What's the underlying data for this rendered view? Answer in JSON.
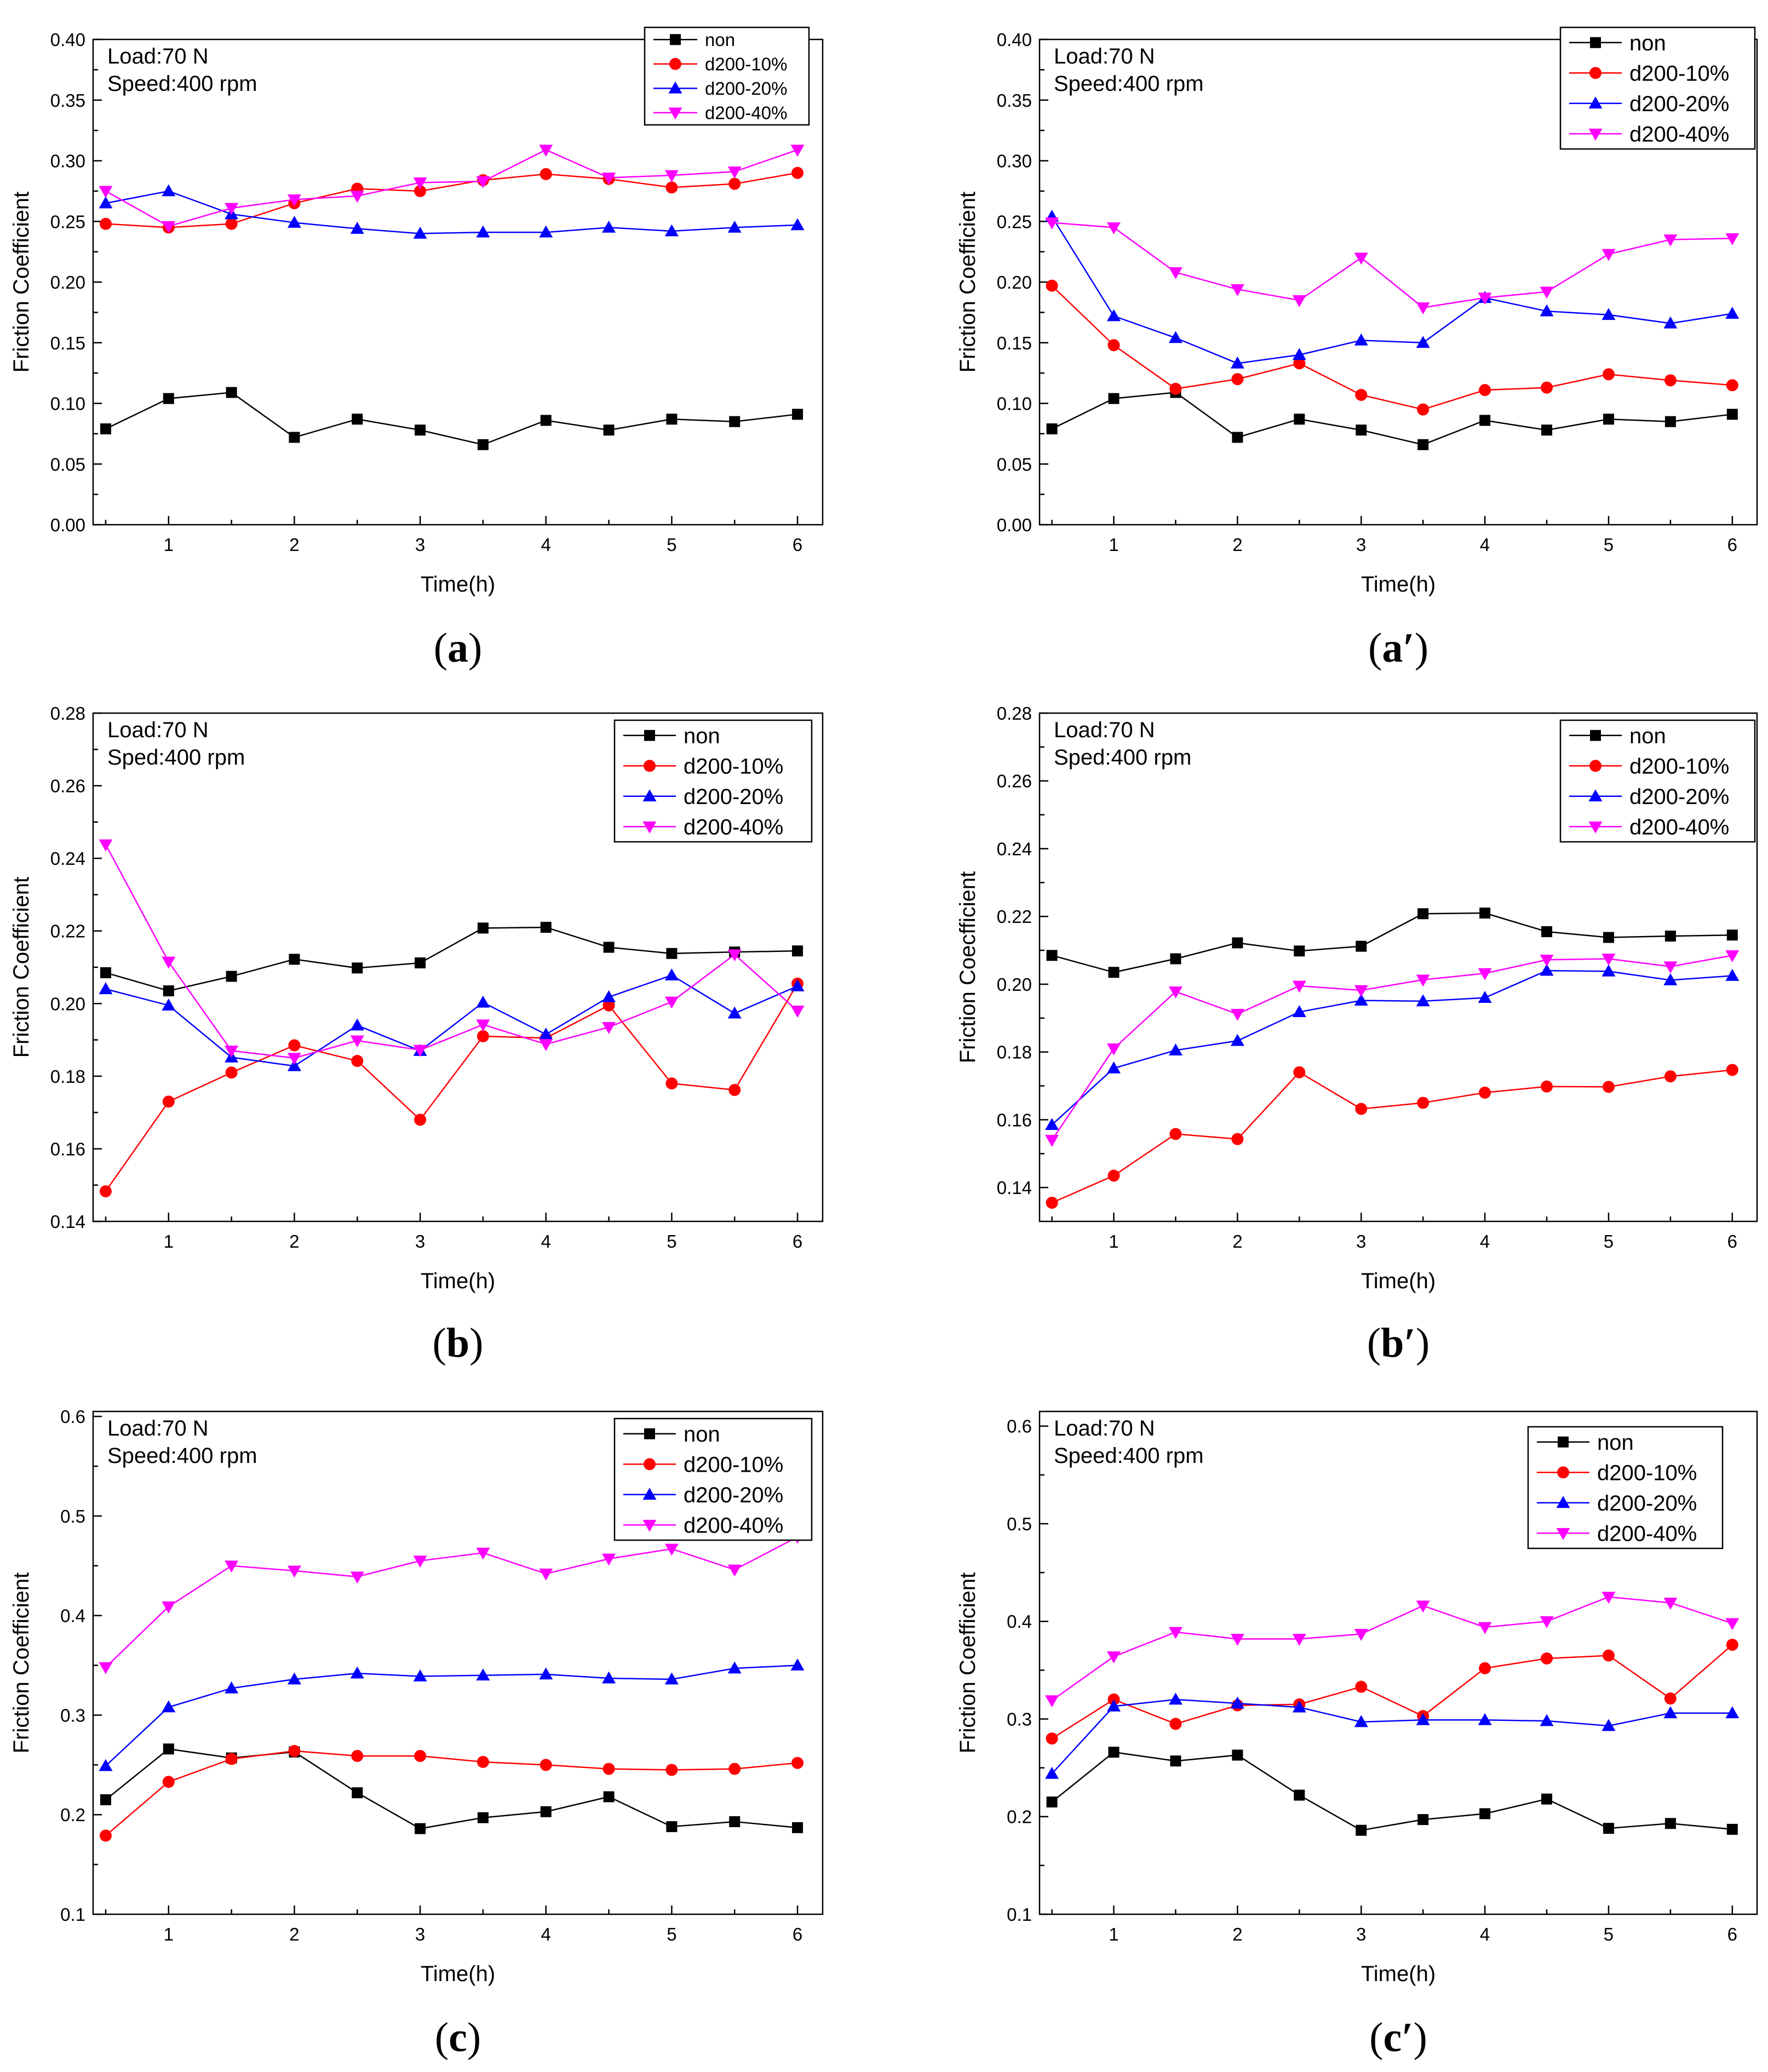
{
  "series_styles": [
    {
      "name": "non",
      "color": "#000000",
      "marker": "square"
    },
    {
      "name": "d200-10%",
      "color": "#ff0000",
      "marker": "circle"
    },
    {
      "name": "d200-20%",
      "color": "#0000ff",
      "marker": "triangle-up"
    },
    {
      "name": "d200-40%",
      "color": "#ff00ff",
      "marker": "triangle-down"
    }
  ],
  "chart_data": [
    {
      "id": "a",
      "type": "line",
      "caption_open": "(",
      "caption_label": "a",
      "caption_close": ")",
      "annotation_lines": [
        "Load:70 N",
        "Speed:400 rpm"
      ],
      "xlabel": "Time(h)",
      "ylabel": "Friction Coefficient",
      "xlim": [
        0.4,
        6.2
      ],
      "ylim": [
        0.0,
        0.4
      ],
      "xticks": [
        1,
        2,
        3,
        4,
        5,
        6
      ],
      "xtick_labels": [
        "1",
        "2",
        "3",
        "4",
        "5",
        "6"
      ],
      "yticks": [
        0.0,
        0.05,
        0.1,
        0.15,
        0.2,
        0.25,
        0.3,
        0.35,
        0.4
      ],
      "ytick_labels": [
        "0.00",
        "0.05",
        "0.10",
        "0.15",
        "0.20",
        "0.25",
        "0.30",
        "0.35",
        "0.40"
      ],
      "legend_position": "top-right",
      "x": [
        0.5,
        1,
        1.5,
        2,
        2.5,
        3,
        3.5,
        4,
        4.5,
        5,
        5.5,
        6
      ],
      "series": [
        {
          "name": "non",
          "values": [
            0.079,
            0.104,
            0.109,
            0.072,
            0.087,
            0.078,
            0.066,
            0.086,
            0.078,
            0.087,
            0.085,
            0.091
          ]
        },
        {
          "name": "d200-10%",
          "values": [
            0.248,
            0.245,
            0.248,
            0.265,
            0.277,
            0.275,
            0.284,
            0.289,
            0.285,
            0.278,
            0.281,
            0.29
          ]
        },
        {
          "name": "d200-20%",
          "values": [
            0.265,
            0.275,
            0.256,
            0.249,
            0.244,
            0.24,
            0.241,
            0.241,
            0.245,
            0.242,
            0.245,
            0.247
          ]
        },
        {
          "name": "d200-40%",
          "values": [
            0.275,
            0.246,
            0.261,
            0.268,
            0.271,
            0.282,
            0.283,
            0.309,
            0.286,
            0.288,
            0.291,
            0.309
          ]
        }
      ]
    },
    {
      "id": "a-prime",
      "type": "line",
      "caption_open": "(",
      "caption_label": "a′",
      "caption_close": ")",
      "annotation_lines": [
        "Load:70 N",
        "Speed:400 rpm"
      ],
      "xlabel": "Time(h)",
      "ylabel": "Friction Coefficient",
      "xlim": [
        0.4,
        6.2
      ],
      "ylim": [
        0.0,
        0.4
      ],
      "xticks": [
        1,
        2,
        3,
        4,
        5,
        6
      ],
      "xtick_labels": [
        "1",
        "2",
        "3",
        "4",
        "5",
        "6"
      ],
      "yticks": [
        0.0,
        0.05,
        0.1,
        0.15,
        0.2,
        0.25,
        0.3,
        0.35,
        0.4
      ],
      "ytick_labels": [
        "0.00",
        "0.05",
        "0.10",
        "0.15",
        "0.20",
        "0.25",
        "0.30",
        "0.35",
        "0.40"
      ],
      "legend_position": "top-right",
      "x": [
        0.5,
        1,
        1.5,
        2,
        2.5,
        3,
        3.5,
        4,
        4.5,
        5,
        5.5,
        6
      ],
      "series": [
        {
          "name": "non",
          "values": [
            0.079,
            0.104,
            0.109,
            0.072,
            0.087,
            0.078,
            0.066,
            0.086,
            0.078,
            0.087,
            0.085,
            0.091
          ]
        },
        {
          "name": "d200-10%",
          "values": [
            0.197,
            0.148,
            0.112,
            0.12,
            0.133,
            0.107,
            0.095,
            0.111,
            0.113,
            0.124,
            0.119,
            0.115
          ]
        },
        {
          "name": "d200-20%",
          "values": [
            0.254,
            0.172,
            0.154,
            0.133,
            0.14,
            0.152,
            0.15,
            0.187,
            0.176,
            0.173,
            0.166,
            0.174
          ]
        },
        {
          "name": "d200-40%",
          "values": [
            0.249,
            0.245,
            0.208,
            0.194,
            0.185,
            0.22,
            0.179,
            0.187,
            0.192,
            0.223,
            0.235,
            0.236
          ]
        }
      ]
    },
    {
      "id": "b",
      "type": "line",
      "caption_open": "(",
      "caption_label": "b",
      "caption_close": ")",
      "annotation_lines": [
        "Load:70 N",
        "Sped:400 rpm"
      ],
      "xlabel": "Time(h)",
      "ylabel": "Friction Coefficient",
      "xlim": [
        0.4,
        6.2
      ],
      "ylim": [
        0.14,
        0.28
      ],
      "xticks": [
        1,
        2,
        3,
        4,
        5,
        6
      ],
      "xtick_labels": [
        "1",
        "2",
        "3",
        "4",
        "5",
        "6"
      ],
      "yticks": [
        0.14,
        0.16,
        0.18,
        0.2,
        0.22,
        0.24,
        0.26,
        0.28
      ],
      "ytick_labels": [
        "0.14",
        "0.16",
        "0.18",
        "0.20",
        "0.22",
        "0.24",
        "0.26",
        "0.28"
      ],
      "legend_position": "top-right",
      "x": [
        0.5,
        1,
        1.5,
        2,
        2.5,
        3,
        3.5,
        4,
        4.5,
        5,
        5.5,
        6
      ],
      "series": [
        {
          "name": "non",
          "values": [
            0.2085,
            0.2035,
            0.2075,
            0.2122,
            0.2098,
            0.2112,
            0.2208,
            0.221,
            0.2155,
            0.2138,
            0.2142,
            0.2145
          ]
        },
        {
          "name": "d200-10%",
          "values": [
            0.1483,
            0.173,
            0.181,
            0.1885,
            0.1842,
            0.168,
            0.191,
            0.1905,
            0.1995,
            0.178,
            0.1762,
            0.2055
          ]
        },
        {
          "name": "d200-20%",
          "values": [
            0.204,
            0.1995,
            0.1852,
            0.1828,
            0.194,
            0.187,
            0.2003,
            0.1915,
            0.2018,
            0.2078,
            0.1973,
            0.2048
          ]
        },
        {
          "name": "d200-40%",
          "values": [
            0.2438,
            0.2115,
            0.187,
            0.185,
            0.1898,
            0.1872,
            0.1942,
            0.1888,
            0.1935,
            0.2005,
            0.2135,
            0.198
          ]
        }
      ]
    },
    {
      "id": "b-prime",
      "type": "line",
      "caption_open": "(",
      "caption_label": "b′",
      "caption_close": ")",
      "annotation_lines": [
        "Load:70 N",
        "Sped:400 rpm"
      ],
      "xlabel": "Time(h)",
      "ylabel": "Friction Coecfficient",
      "xlim": [
        0.4,
        6.2
      ],
      "ylim": [
        0.13,
        0.28
      ],
      "xticks": [
        1,
        2,
        3,
        4,
        5,
        6
      ],
      "xtick_labels": [
        "1",
        "2",
        "3",
        "4",
        "5",
        "6"
      ],
      "yticks": [
        0.14,
        0.16,
        0.18,
        0.2,
        0.22,
        0.24,
        0.26,
        0.28
      ],
      "ytick_labels": [
        "0.14",
        "0.16",
        "0.18",
        "0.20",
        "0.22",
        "0.24",
        "0.26",
        "0.28"
      ],
      "legend_position": "top-right",
      "x": [
        0.5,
        1,
        1.5,
        2,
        2.5,
        3,
        3.5,
        4,
        4.5,
        5,
        5.5,
        6
      ],
      "series": [
        {
          "name": "non",
          "values": [
            0.2085,
            0.2035,
            0.2075,
            0.2122,
            0.2098,
            0.2112,
            0.2208,
            0.221,
            0.2155,
            0.2138,
            0.2142,
            0.2145
          ]
        },
        {
          "name": "d200-10%",
          "values": [
            0.1355,
            0.1435,
            0.1558,
            0.1543,
            0.174,
            0.1632,
            0.165,
            0.168,
            0.1698,
            0.1697,
            0.1728,
            0.1747
          ]
        },
        {
          "name": "d200-20%",
          "values": [
            0.1585,
            0.1752,
            0.1805,
            0.1833,
            0.1918,
            0.1952,
            0.195,
            0.196,
            0.204,
            0.2038,
            0.2012,
            0.2025
          ]
        },
        {
          "name": "d200-40%",
          "values": [
            0.154,
            0.181,
            0.1978,
            0.1912,
            0.1995,
            0.1982,
            0.2013,
            0.2032,
            0.2072,
            0.2075,
            0.2052,
            0.2085
          ]
        }
      ]
    },
    {
      "id": "c",
      "type": "line",
      "caption_open": "(",
      "caption_label": "c",
      "caption_close": ")",
      "annotation_lines": [
        "Load:70 N",
        "Speed:400 rpm"
      ],
      "xlabel": "Time(h)",
      "ylabel": "Friction Coefficient",
      "xlim": [
        0.4,
        6.2
      ],
      "ylim": [
        0.1,
        0.605
      ],
      "xticks": [
        1,
        2,
        3,
        4,
        5,
        6
      ],
      "xtick_labels": [
        "1",
        "2",
        "3",
        "4",
        "5",
        "6"
      ],
      "yticks": [
        0.1,
        0.2,
        0.3,
        0.4,
        0.5,
        0.6
      ],
      "ytick_labels": [
        "0.1",
        "0.2",
        "0.3",
        "0.4",
        "0.5",
        "0.6"
      ],
      "legend_position": "top-right",
      "x": [
        0.5,
        1,
        1.5,
        2,
        2.5,
        3,
        3.5,
        4,
        4.5,
        5,
        5.5,
        6
      ],
      "series": [
        {
          "name": "non",
          "values": [
            0.215,
            0.266,
            0.257,
            0.263,
            0.222,
            0.186,
            0.197,
            0.203,
            0.218,
            0.188,
            0.193,
            0.187
          ]
        },
        {
          "name": "d200-10%",
          "values": [
            0.179,
            0.233,
            0.256,
            0.264,
            0.259,
            0.259,
            0.253,
            0.25,
            0.246,
            0.245,
            0.246,
            0.252
          ]
        },
        {
          "name": "d200-20%",
          "values": [
            0.249,
            0.308,
            0.327,
            0.336,
            0.342,
            0.339,
            0.34,
            0.341,
            0.337,
            0.336,
            0.347,
            0.35
          ]
        },
        {
          "name": "d200-40%",
          "values": [
            0.348,
            0.409,
            0.45,
            0.445,
            0.439,
            0.455,
            0.463,
            0.442,
            0.457,
            0.467,
            0.446,
            0.479
          ]
        }
      ]
    },
    {
      "id": "c-prime",
      "type": "line",
      "caption_open": "(",
      "caption_label": "c′",
      "caption_close": ")",
      "annotation_lines": [
        "Load:70 N",
        "Speed:400 rpm"
      ],
      "xlabel": "Time(h)",
      "ylabel": "Friction Coefficient",
      "xlim": [
        0.4,
        6.2
      ],
      "ylim": [
        0.1,
        0.615
      ],
      "xticks": [
        1,
        2,
        3,
        4,
        5,
        6
      ],
      "xtick_labels": [
        "1",
        "2",
        "3",
        "4",
        "5",
        "6"
      ],
      "yticks": [
        0.1,
        0.2,
        0.3,
        0.4,
        0.5,
        0.6
      ],
      "ytick_labels": [
        "0.1",
        "0.2",
        "0.3",
        "0.4",
        "0.5",
        "0.6"
      ],
      "legend_position": "top-right",
      "x": [
        0.5,
        1,
        1.5,
        2,
        2.5,
        3,
        3.5,
        4,
        4.5,
        5,
        5.5,
        6
      ],
      "series": [
        {
          "name": "non",
          "values": [
            0.215,
            0.266,
            0.257,
            0.263,
            0.222,
            0.186,
            0.197,
            0.203,
            0.218,
            0.188,
            0.193,
            0.187
          ]
        },
        {
          "name": "d200-10%",
          "values": [
            0.28,
            0.32,
            0.295,
            0.314,
            0.315,
            0.333,
            0.303,
            0.352,
            0.362,
            0.365,
            0.321,
            0.376
          ]
        },
        {
          "name": "d200-20%",
          "values": [
            0.244,
            0.313,
            0.32,
            0.316,
            0.312,
            0.297,
            0.299,
            0.299,
            0.298,
            0.293,
            0.306,
            0.306
          ]
        },
        {
          "name": "d200-40%",
          "values": [
            0.319,
            0.364,
            0.389,
            0.382,
            0.382,
            0.387,
            0.416,
            0.394,
            0.4,
            0.425,
            0.419,
            0.398
          ]
        }
      ]
    }
  ]
}
